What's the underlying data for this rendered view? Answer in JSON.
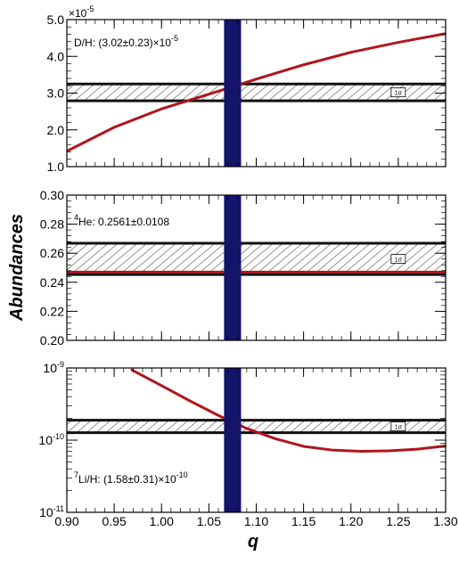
{
  "chart_data": [
    {
      "type": "line",
      "panel": "top",
      "title": "",
      "xlabel": "q",
      "ylabel": "Abundances",
      "xlim": [
        0.9,
        1.3
      ],
      "ylim": [
        1.0,
        5.0
      ],
      "y_scale_note": "×10",
      "y_scale_exp": "-5",
      "y_ticks": [
        1.0,
        2.0,
        3.0,
        4.0,
        5.0
      ],
      "y_tick_labels": [
        "1.0",
        "2.0",
        "3.0",
        "4.0",
        "5.0"
      ],
      "x_ticks": [
        0.9,
        0.95,
        1.0,
        1.05,
        1.1,
        1.15,
        1.2,
        1.25,
        1.3
      ],
      "x_tick_labels": [
        "0.90",
        "0.95",
        "1.00",
        "1.05",
        "1.10",
        "1.15",
        "1.20",
        "1.25",
        "1.30"
      ],
      "annotation": "D/H: (3.02±0.23)×10",
      "annotation_exp": "-5",
      "band": {
        "low": 2.79,
        "high": 3.25,
        "label": "1σ"
      },
      "series": [
        {
          "color": "#b0151d",
          "x": [
            0.9,
            0.95,
            1.0,
            1.05,
            1.1,
            1.15,
            1.2,
            1.25,
            1.3
          ],
          "y": [
            1.42,
            2.07,
            2.57,
            2.97,
            3.38,
            3.77,
            4.11,
            4.38,
            4.62
          ]
        }
      ],
      "vband": {
        "x_low": 1.066,
        "x_high": 1.084,
        "color": "#14146b"
      },
      "grid": false
    },
    {
      "type": "line",
      "panel": "middle",
      "title": "",
      "xlim": [
        0.9,
        1.3
      ],
      "ylim": [
        0.2,
        0.3
      ],
      "y_ticks": [
        0.2,
        0.22,
        0.24,
        0.26,
        0.28,
        0.3
      ],
      "y_tick_labels": [
        "0.20",
        "0.22",
        "0.24",
        "0.26",
        "0.28",
        "0.30"
      ],
      "annotation_sup": "4",
      "annotation": "He: 0.2561±0.0108",
      "band": {
        "low": 0.2453,
        "high": 0.2669,
        "label": "1σ"
      },
      "series": [
        {
          "color": "#b0151d",
          "x": [
            0.9,
            1.3
          ],
          "y": [
            0.247,
            0.247
          ]
        }
      ],
      "vband": {
        "x_low": 1.066,
        "x_high": 1.084,
        "color": "#14146b"
      },
      "grid": false
    },
    {
      "type": "line",
      "panel": "bottom",
      "title": "",
      "xlim": [
        0.9,
        1.3
      ],
      "ylim": [
        1e-11,
        1e-09
      ],
      "y_scale": "log",
      "y_ticks": [
        1e-11,
        1e-10,
        1e-09
      ],
      "y_tick_base": "10",
      "y_tick_exps": [
        "-11",
        "-10",
        "-9"
      ],
      "annotation_sup": "7",
      "annotation": "Li/H: (1.58±0.31)×10",
      "annotation_exp": "-10",
      "band": {
        "low": 1.27e-10,
        "high": 1.89e-10,
        "label": "1σ"
      },
      "series": [
        {
          "color": "#b0151d",
          "x": [
            0.968,
            1.0,
            1.03,
            1.06,
            1.09,
            1.12,
            1.15,
            1.18,
            1.21,
            1.24,
            1.27,
            1.3
          ],
          "y": [
            9.5e-10,
            5.7e-10,
            3.5e-10,
            2.2e-10,
            1.45e-10,
            1.05e-10,
            8.2e-11,
            7.3e-11,
            7e-11,
            7.1e-11,
            7.5e-11,
            8.3e-11
          ]
        }
      ],
      "vband": {
        "x_low": 1.066,
        "x_high": 1.084,
        "color": "#14146b"
      },
      "grid": false
    }
  ]
}
